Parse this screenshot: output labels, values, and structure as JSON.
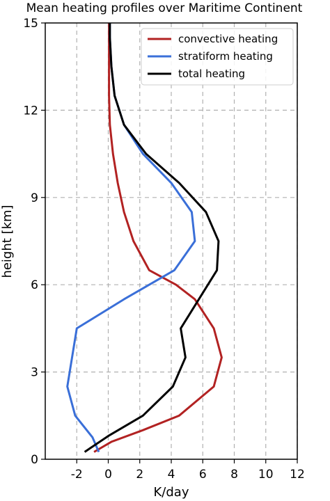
{
  "chart_data": {
    "type": "line",
    "title": "Mean heating profiles over Maritime Continent",
    "xlabel": "K/day",
    "ylabel": "height [km]",
    "xlim": [
      -4,
      12
    ],
    "ylim": [
      0,
      15
    ],
    "xticks": [
      -2,
      0,
      2,
      4,
      6,
      8,
      10,
      12
    ],
    "yticks": [
      0,
      3,
      6,
      9,
      12,
      15
    ],
    "grid": true,
    "legend_position": "top-right",
    "series": [
      {
        "name": "convective heating",
        "color": "#b22222",
        "points": [
          [
            -0.9,
            0.25
          ],
          [
            0.2,
            0.6
          ],
          [
            2.2,
            1.0
          ],
          [
            4.5,
            1.5
          ],
          [
            6.7,
            2.5
          ],
          [
            7.2,
            3.5
          ],
          [
            6.7,
            4.5
          ],
          [
            5.5,
            5.5
          ],
          [
            4.3,
            6.0
          ],
          [
            2.6,
            6.5
          ],
          [
            1.6,
            7.5
          ],
          [
            1.0,
            8.5
          ],
          [
            0.6,
            9.5
          ],
          [
            0.3,
            10.5
          ],
          [
            0.1,
            11.5
          ],
          [
            0.05,
            12.5
          ],
          [
            0.05,
            13.5
          ],
          [
            0.05,
            14.5
          ],
          [
            0.05,
            15.0
          ]
        ]
      },
      {
        "name": "stratiform heating",
        "color": "#3a6fd8",
        "points": [
          [
            -0.6,
            0.25
          ],
          [
            -1.0,
            0.75
          ],
          [
            -2.1,
            1.5
          ],
          [
            -2.6,
            2.5
          ],
          [
            -2.0,
            4.5
          ],
          [
            1.0,
            5.5
          ],
          [
            4.2,
            6.5
          ],
          [
            5.5,
            7.5
          ],
          [
            5.3,
            8.5
          ],
          [
            4.0,
            9.5
          ],
          [
            2.2,
            10.5
          ],
          [
            1.0,
            11.5
          ],
          [
            0.4,
            12.5
          ],
          [
            0.2,
            13.5
          ],
          [
            0.1,
            14.5
          ],
          [
            0.1,
            15.0
          ]
        ]
      },
      {
        "name": "total heating",
        "color": "#000000",
        "points": [
          [
            -1.5,
            0.25
          ],
          [
            0.0,
            0.8
          ],
          [
            2.2,
            1.5
          ],
          [
            4.1,
            2.5
          ],
          [
            4.9,
            3.5
          ],
          [
            4.6,
            4.5
          ],
          [
            6.9,
            6.5
          ],
          [
            7.0,
            7.5
          ],
          [
            6.2,
            8.5
          ],
          [
            4.5,
            9.5
          ],
          [
            2.4,
            10.5
          ],
          [
            1.0,
            11.5
          ],
          [
            0.4,
            12.5
          ],
          [
            0.2,
            13.5
          ],
          [
            0.1,
            14.5
          ],
          [
            0.1,
            15.0
          ]
        ]
      }
    ]
  }
}
